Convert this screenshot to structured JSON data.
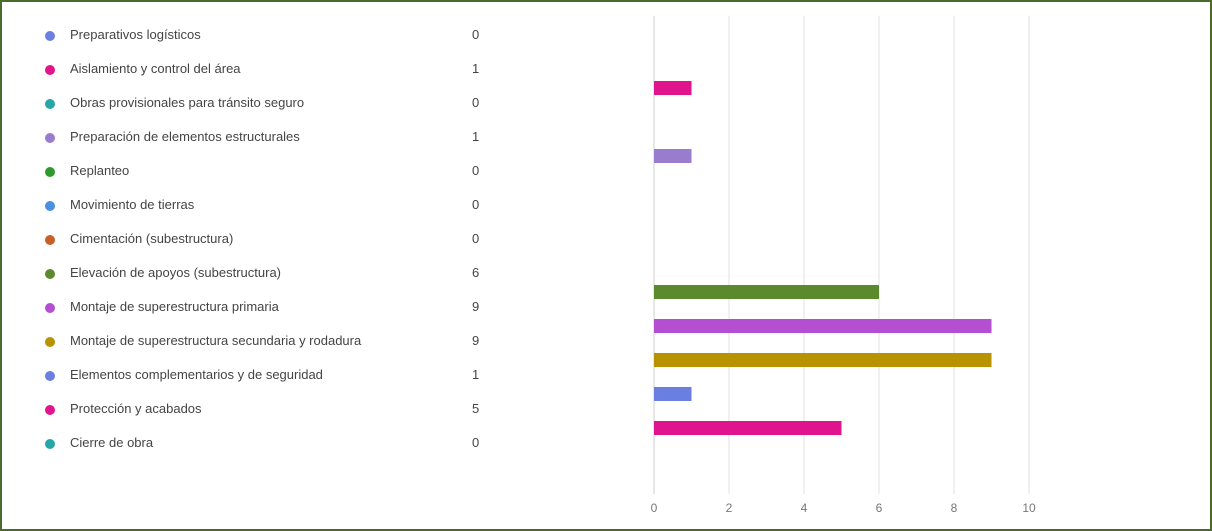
{
  "chart_data": {
    "type": "bar",
    "orientation": "horizontal",
    "categories": [
      "Preparativos logísticos",
      "Aislamiento y control del área",
      "Obras provisionales para tránsito seguro",
      "Preparación de elementos estructurales",
      "Replanteo",
      "Movimiento de tierras",
      "Cimentación (subestructura)",
      "Elevación de apoyos (subestructura)",
      "Montaje de superestructura primaria",
      "Montaje de superestructura secundaria y rodadura",
      "Elementos complementarios y de seguridad",
      "Protección y acabados",
      "Cierre de obra"
    ],
    "values": [
      0,
      1,
      0,
      1,
      0,
      0,
      0,
      6,
      9,
      9,
      1,
      5,
      0
    ],
    "value_labels": [
      "0",
      "1",
      "0",
      "1",
      "0",
      "0",
      "0",
      "6",
      "9",
      "9",
      "1",
      "5",
      "0"
    ],
    "colors": [
      "#6a7fe0",
      "#e0148c",
      "#26a6a6",
      "#9a7ccf",
      "#2e9a2e",
      "#4a90e0",
      "#c8602a",
      "#5b8a2e",
      "#b34fd0",
      "#b89200",
      "#6a7fe0",
      "#e0148c",
      "#26a6a6"
    ],
    "x_ticks": [
      0,
      2,
      4,
      6,
      8,
      10
    ],
    "x_tick_labels": [
      "0",
      "2",
      "4",
      "6",
      "8",
      "10"
    ],
    "xlim": [
      0,
      10
    ],
    "grid": true,
    "legend_placement": "left",
    "title": "",
    "xlabel": "",
    "ylabel": ""
  }
}
